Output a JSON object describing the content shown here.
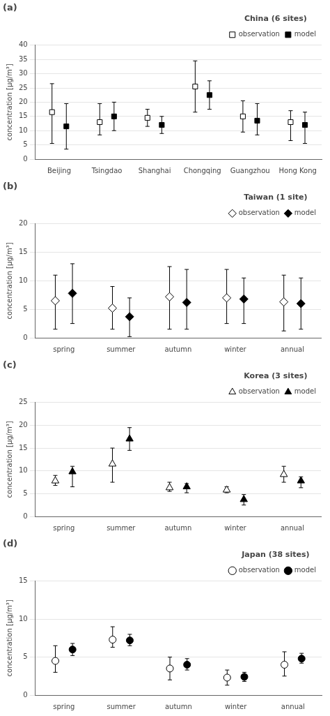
{
  "chart_data": [
    {
      "type": "errorbar",
      "title": "China (6 sites)",
      "annotations": [
        "(a)"
      ],
      "ylabel": "concentration [μg/m³]",
      "categories": [
        "Beijing",
        "Tsingdao",
        "Shanghai",
        "Chongqing",
        "Guangzhou",
        "Hong Kong"
      ],
      "ylim": [
        0,
        40
      ],
      "yticks": [
        0,
        5,
        10,
        15,
        20,
        25,
        30,
        35,
        40
      ],
      "grid": true,
      "legend": "upper right",
      "series": [
        {
          "name": "observation",
          "color": "#ffffff",
          "marker": "square",
          "values": [
            16.5,
            13.0,
            14.5,
            25.5,
            15.0,
            13.0
          ],
          "lower": [
            5.5,
            8.5,
            11.5,
            16.5,
            9.5,
            6.5
          ],
          "upper": [
            26.5,
            19.5,
            17.5,
            34.5,
            20.5,
            17.0
          ]
        },
        {
          "name": "model",
          "color": "#000000",
          "marker": "square",
          "values": [
            11.5,
            15.0,
            12.0,
            22.5,
            13.5,
            12.0
          ],
          "lower": [
            3.5,
            10.0,
            9.0,
            17.5,
            8.5,
            5.5
          ],
          "upper": [
            19.5,
            20.0,
            15.0,
            27.5,
            19.5,
            16.5
          ]
        }
      ]
    },
    {
      "type": "errorbar",
      "title": "Taiwan (1 site)",
      "annotations": [
        "(b)"
      ],
      "ylabel": "concentration [μg/m³]",
      "categories": [
        "spring",
        "summer",
        "autumn",
        "winter",
        "annual"
      ],
      "ylim": [
        0,
        20
      ],
      "yticks": [
        0,
        5,
        10,
        15,
        20
      ],
      "grid": true,
      "legend": "upper right",
      "series": [
        {
          "name": "observation",
          "color": "#ffffff",
          "marker": "diamond",
          "values": [
            6.5,
            5.2,
            7.2,
            7.0,
            6.3
          ],
          "lower": [
            1.5,
            1.5,
            1.5,
            2.5,
            1.2
          ],
          "upper": [
            11.0,
            9.0,
            12.5,
            12.0,
            11.0
          ]
        },
        {
          "name": "model",
          "color": "#000000",
          "marker": "diamond",
          "values": [
            7.8,
            3.7,
            6.2,
            6.8,
            6.0
          ],
          "lower": [
            2.5,
            0.2,
            1.5,
            2.5,
            1.5
          ],
          "upper": [
            13.0,
            7.0,
            12.0,
            10.5,
            10.5
          ]
        }
      ]
    },
    {
      "type": "errorbar",
      "title": "Korea (3 sites)",
      "annotations": [
        "(c)"
      ],
      "ylabel": "concentration [μg/m³]",
      "categories": [
        "spring",
        "summer",
        "autumn",
        "winter",
        "annual"
      ],
      "ylim": [
        0,
        25
      ],
      "yticks": [
        0,
        5,
        10,
        15,
        20,
        25
      ],
      "grid": true,
      "legend": "upper right",
      "series": [
        {
          "name": "observation",
          "color": "#ffffff",
          "marker": "triangle",
          "values": [
            7.8,
            11.5,
            6.3,
            5.8,
            9.2
          ],
          "lower": [
            6.8,
            7.5,
            5.5,
            5.2,
            7.5
          ],
          "upper": [
            9.0,
            15.0,
            7.5,
            6.5,
            11.0
          ]
        },
        {
          "name": "model",
          "color": "#000000",
          "marker": "triangle",
          "values": [
            9.8,
            17.0,
            6.5,
            3.7,
            7.8
          ],
          "lower": [
            6.5,
            14.5,
            5.2,
            2.5,
            6.3
          ],
          "upper": [
            11.0,
            19.5,
            7.2,
            4.8,
            8.7
          ]
        }
      ]
    },
    {
      "type": "errorbar",
      "title": "Japan (38 sites)",
      "annotations": [
        "(d)"
      ],
      "ylabel": "concentration [μg/m³]",
      "categories": [
        "spring",
        "summer",
        "autumn",
        "winter",
        "annual"
      ],
      "ylim": [
        0,
        15
      ],
      "yticks": [
        0,
        5,
        10,
        15
      ],
      "grid": true,
      "legend": "upper right",
      "series": [
        {
          "name": "observation",
          "color": "#ffffff",
          "marker": "circle",
          "values": [
            4.5,
            7.3,
            3.5,
            2.3,
            4.0
          ],
          "lower": [
            3.0,
            6.3,
            2.0,
            1.3,
            2.5
          ],
          "upper": [
            6.5,
            9.0,
            5.0,
            3.3,
            5.7
          ]
        },
        {
          "name": "model",
          "color": "#000000",
          "marker": "circle",
          "values": [
            6.0,
            7.2,
            4.0,
            2.4,
            4.8
          ],
          "lower": [
            5.2,
            6.5,
            3.3,
            1.8,
            4.2
          ],
          "upper": [
            6.8,
            8.0,
            4.8,
            3.0,
            5.5
          ]
        }
      ]
    }
  ]
}
